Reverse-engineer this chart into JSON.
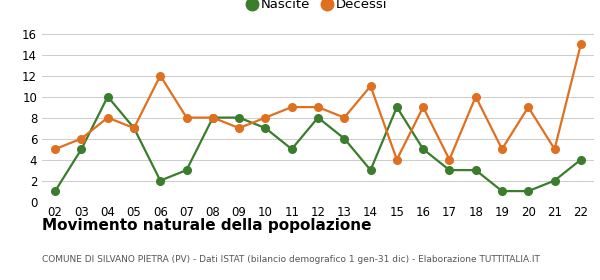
{
  "years": [
    "02",
    "03",
    "04",
    "05",
    "06",
    "07",
    "08",
    "09",
    "10",
    "11",
    "12",
    "13",
    "14",
    "15",
    "16",
    "17",
    "18",
    "19",
    "20",
    "21",
    "22"
  ],
  "nascite": [
    1,
    5,
    10,
    7,
    2,
    3,
    8,
    8,
    7,
    5,
    8,
    6,
    3,
    9,
    5,
    3,
    3,
    1,
    1,
    2,
    4
  ],
  "decessi": [
    5,
    6,
    8,
    7,
    12,
    8,
    8,
    7,
    8,
    9,
    9,
    8,
    11,
    4,
    9,
    4,
    10,
    5,
    9,
    5,
    15
  ],
  "nascite_color": "#3a7d2c",
  "decessi_color": "#e07020",
  "title": "Movimento naturale della popolazione",
  "subtitle": "COMUNE DI SILVANO PIETRA (PV) - Dati ISTAT (bilancio demografico 1 gen-31 dic) - Elaborazione TUTTITALIA.IT",
  "ylim": [
    0,
    16
  ],
  "yticks": [
    0,
    2,
    4,
    6,
    8,
    10,
    12,
    14,
    16
  ],
  "background_color": "#ffffff",
  "grid_color": "#cccccc",
  "legend_nascite": "Nascite",
  "legend_decessi": "Decessi",
  "title_fontsize": 11,
  "subtitle_fontsize": 6.5,
  "tick_fontsize": 8.5,
  "legend_fontsize": 9.5,
  "marker_size": 5.5,
  "linewidth": 1.6
}
